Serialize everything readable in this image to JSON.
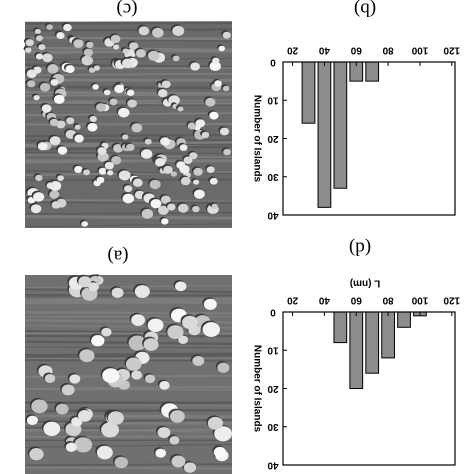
{
  "images": [
    {
      "label": "(c)"
    },
    {
      "label": "(a)"
    }
  ],
  "chart_data": [
    {
      "type": "bar",
      "panel_label": "(b)",
      "y_label": "Number of Islands",
      "x": [
        30,
        40,
        50,
        60,
        70
      ],
      "values": [
        16,
        38,
        33,
        5,
        5
      ],
      "color": "#8c8c8c",
      "xlim": [
        14,
        122
      ],
      "xticks": [
        20,
        40,
        60,
        80,
        100,
        120
      ],
      "ylim": [
        0,
        40
      ],
      "yticks": [
        0,
        10,
        20,
        30,
        40
      ]
    },
    {
      "type": "bar",
      "panel_label": "(d)",
      "x_label": "L (nm)",
      "y_label": "Number of Islands",
      "x": [
        50,
        60,
        70,
        80,
        90,
        100
      ],
      "values": [
        8,
        20,
        16,
        12,
        4,
        1
      ],
      "color": "#8c8c8c",
      "xlim": [
        14,
        122
      ],
      "xticks": [
        20,
        40,
        60,
        80,
        100,
        120
      ],
      "ylim": [
        0,
        40
      ],
      "yticks": [
        0,
        10,
        20,
        30,
        40
      ]
    }
  ]
}
